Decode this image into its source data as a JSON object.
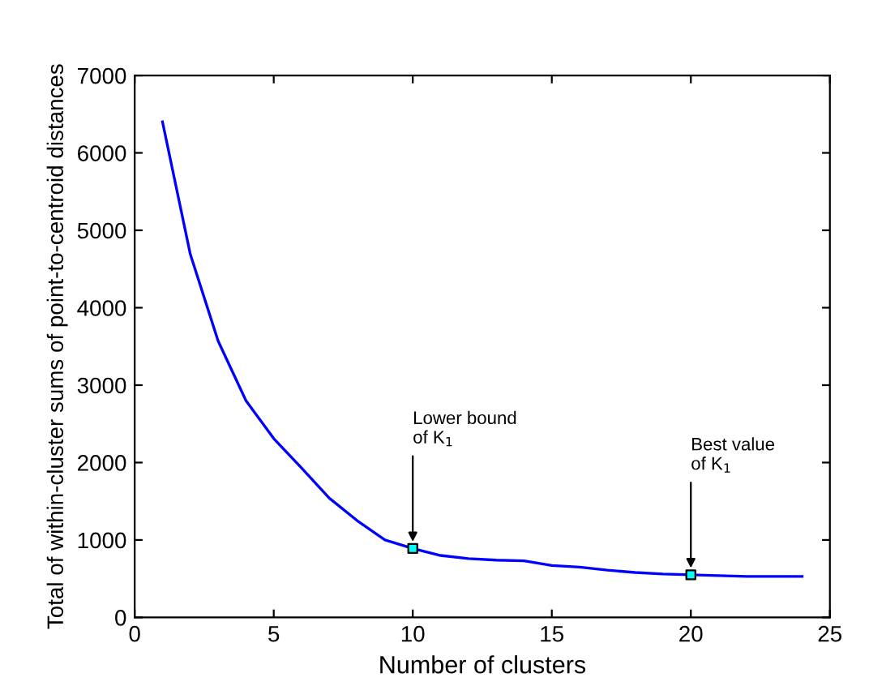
{
  "chart_data": {
    "type": "line",
    "xlabel": "Number of clusters",
    "ylabel": "Total of within-cluster sums of point-to-centroid distances",
    "x": [
      1,
      2,
      3,
      4,
      5,
      6,
      7,
      8,
      9,
      10,
      11,
      12,
      13,
      14,
      15,
      16,
      17,
      18,
      19,
      20,
      21,
      22,
      23,
      24
    ],
    "series": [
      {
        "color": "#0000ff",
        "values": [
          6400,
          4690,
          3570,
          2800,
          2310,
          1930,
          1540,
          1250,
          1000,
          890,
          800,
          760,
          740,
          730,
          670,
          650,
          610,
          580,
          560,
          550,
          540,
          530,
          530,
          530
        ]
      },
      {
        "type": "scatter",
        "marker": "square",
        "color": "#00ffff",
        "x": [
          10,
          20
        ],
        "values": [
          890,
          550
        ]
      }
    ],
    "annotations": [
      {
        "text": "Lower bound\nof K$_{1}$",
        "x": 10,
        "y": 890
      },
      {
        "text": "Best value\nof K$_{1}$",
        "x": 20,
        "y": 550
      }
    ],
    "xlim": [
      0,
      25
    ],
    "xticks": [
      0,
      5,
      10,
      15,
      20,
      25
    ],
    "ylim": [
      0,
      7000
    ],
    "yticks": [
      0,
      1000,
      2000,
      3000,
      4000,
      5000,
      6000,
      7000
    ],
    "grid": false,
    "marker": "none",
    "line_style": "solid"
  }
}
